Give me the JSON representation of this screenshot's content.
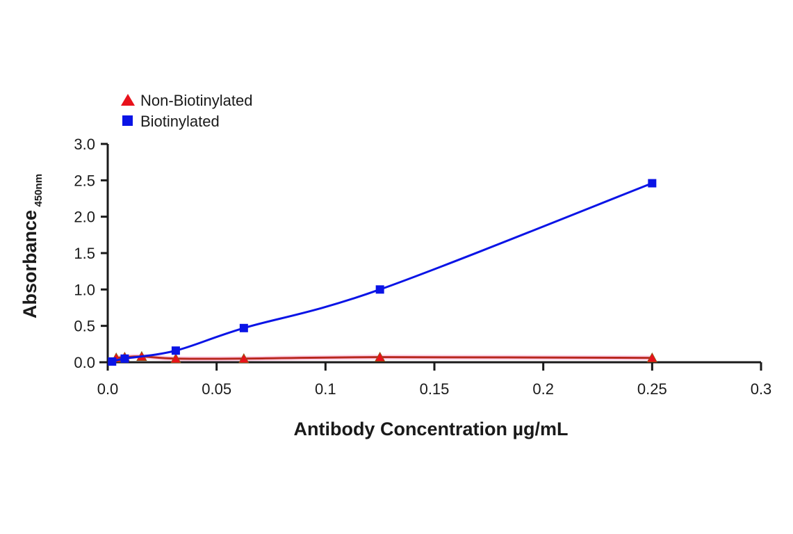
{
  "chart_data": {
    "type": "line",
    "title": "",
    "xlabel": "Antibody Concentration µg/mL",
    "ylabel": "Absorbance",
    "ylabel_subscript": "450nm",
    "xlim": [
      0,
      0.3
    ],
    "ylim": [
      0,
      3.0
    ],
    "grid": false,
    "legend_position": "top-left",
    "x_ticks": [
      0.0,
      0.05,
      0.1,
      0.15,
      0.2,
      0.25,
      0.3
    ],
    "x_tick_labels": [
      "0.0",
      "0.05",
      "0.1",
      "0.15",
      "0.2",
      "0.25",
      "0.3"
    ],
    "y_ticks": [
      0.0,
      0.5,
      1.0,
      1.5,
      2.0,
      2.5,
      3.0
    ],
    "y_tick_labels": [
      "0.0",
      "0.5",
      "1.0",
      "1.5",
      "2.0",
      "2.5",
      "3.0"
    ],
    "series": [
      {
        "name": "Non-Biotinylated",
        "marker": "triangle",
        "color": "#e8121b",
        "line_color": "#b8281e",
        "x": [
          0.0039,
          0.0078,
          0.0156,
          0.03125,
          0.0625,
          0.125,
          0.25
        ],
        "values": [
          0.06,
          0.07,
          0.08,
          0.05,
          0.05,
          0.07,
          0.06
        ]
      },
      {
        "name": "Biotinylated",
        "marker": "square",
        "color": "#0a14e6",
        "line_color": "#0a14e6",
        "x": [
          0.002,
          0.0078,
          0.03125,
          0.0625,
          0.125,
          0.25
        ],
        "values": [
          0.01,
          0.05,
          0.16,
          0.47,
          1.0,
          2.46
        ]
      }
    ]
  },
  "legend": {
    "items": [
      {
        "label": "Non-Biotinylated"
      },
      {
        "label": "Biotinylated"
      }
    ]
  }
}
